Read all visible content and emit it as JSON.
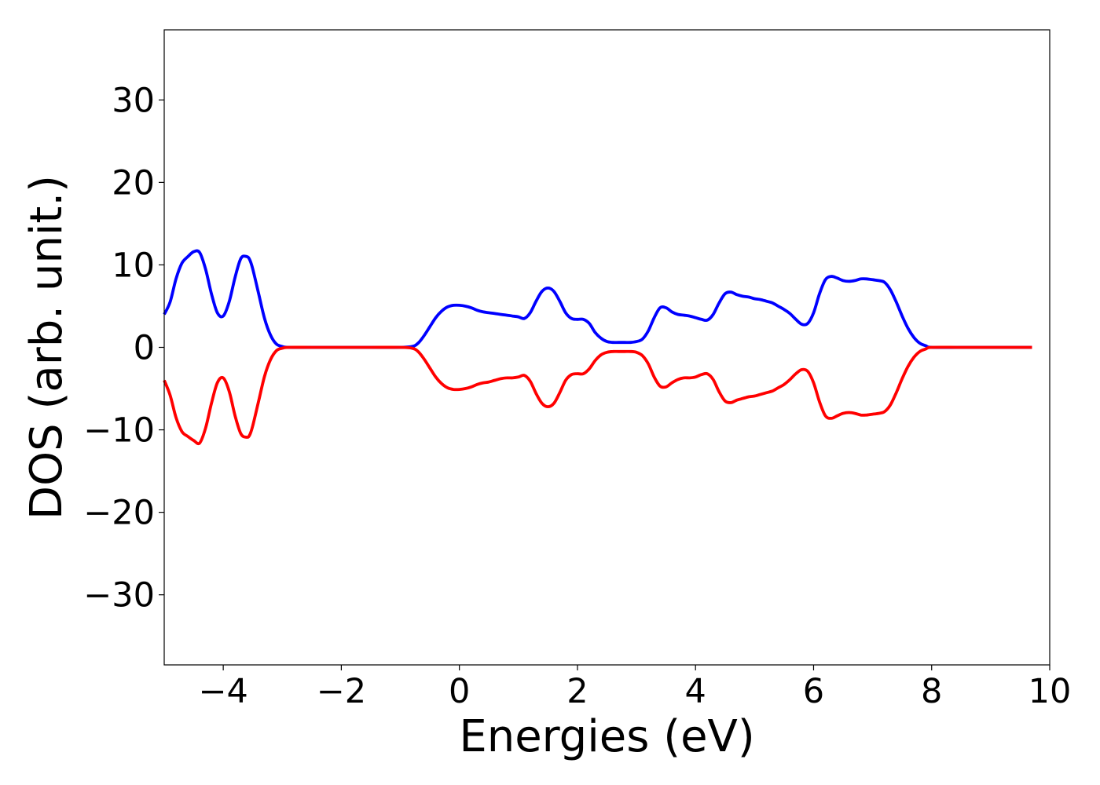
{
  "chart_data": {
    "type": "line",
    "title": "",
    "xlabel": "Energies (eV)",
    "ylabel": "DOS (arb. unit.)",
    "xlim": [
      -5,
      10
    ],
    "ylim": [
      -38.5,
      38.5
    ],
    "xticks": [
      -4,
      -2,
      0,
      2,
      4,
      6,
      8,
      10
    ],
    "yticks": [
      -30,
      -20,
      -10,
      0,
      10,
      20,
      30
    ],
    "xtick_labels": [
      "−4",
      "−2",
      "0",
      "2",
      "4",
      "6",
      "8",
      "10"
    ],
    "ytick_labels": [
      "−30",
      "−20",
      "−10",
      "0",
      "10",
      "20",
      "30"
    ],
    "grid": false,
    "legend": "none",
    "series": [
      {
        "color": "#0000ff",
        "x": [
          -5.0,
          -4.9,
          -4.8,
          -4.7,
          -4.6,
          -4.5,
          -4.4,
          -4.3,
          -4.2,
          -4.1,
          -4.0,
          -3.9,
          -3.8,
          -3.7,
          -3.6,
          -3.55,
          -3.5,
          -3.4,
          -3.3,
          -3.2,
          -3.1,
          -3.0,
          -2.9,
          -2.5,
          -2.0,
          -1.5,
          -1.0,
          -0.8,
          -0.7,
          -0.6,
          -0.5,
          -0.4,
          -0.3,
          -0.2,
          -0.1,
          0.0,
          0.1,
          0.2,
          0.3,
          0.4,
          0.5,
          0.6,
          0.7,
          0.8,
          0.9,
          1.0,
          1.1,
          1.2,
          1.3,
          1.4,
          1.5,
          1.6,
          1.7,
          1.8,
          1.9,
          2.0,
          2.1,
          2.2,
          2.3,
          2.4,
          2.5,
          2.6,
          2.7,
          2.8,
          2.9,
          3.0,
          3.1,
          3.2,
          3.3,
          3.4,
          3.5,
          3.6,
          3.7,
          3.8,
          3.9,
          4.0,
          4.1,
          4.2,
          4.3,
          4.4,
          4.5,
          4.6,
          4.7,
          4.8,
          4.9,
          5.0,
          5.1,
          5.2,
          5.3,
          5.4,
          5.5,
          5.6,
          5.7,
          5.8,
          5.9,
          6.0,
          6.1,
          6.2,
          6.3,
          6.4,
          6.5,
          6.6,
          6.7,
          6.8,
          6.9,
          7.0,
          7.1,
          7.2,
          7.3,
          7.4,
          7.5,
          7.6,
          7.7,
          7.8,
          7.9,
          8.0,
          8.5,
          9.0,
          9.7
        ],
        "y": [
          4.0,
          5.5,
          8.3,
          10.2,
          11.0,
          11.6,
          11.5,
          9.5,
          6.5,
          4.2,
          3.8,
          5.5,
          8.5,
          10.8,
          11.0,
          10.6,
          9.5,
          6.5,
          3.5,
          1.5,
          0.4,
          0.1,
          0.0,
          0.0,
          0.0,
          0.0,
          0.0,
          0.1,
          0.5,
          1.4,
          2.5,
          3.6,
          4.4,
          4.9,
          5.1,
          5.1,
          5.0,
          4.8,
          4.5,
          4.3,
          4.2,
          4.1,
          4.0,
          3.9,
          3.8,
          3.7,
          3.5,
          4.2,
          5.6,
          6.8,
          7.2,
          6.8,
          5.6,
          4.2,
          3.5,
          3.4,
          3.4,
          2.9,
          1.8,
          1.1,
          0.7,
          0.6,
          0.6,
          0.6,
          0.6,
          0.7,
          1.0,
          2.0,
          3.6,
          4.8,
          4.8,
          4.3,
          4.0,
          3.9,
          3.8,
          3.6,
          3.4,
          3.3,
          4.0,
          5.4,
          6.5,
          6.7,
          6.4,
          6.2,
          6.1,
          5.9,
          5.8,
          5.6,
          5.4,
          5.0,
          4.6,
          4.1,
          3.4,
          2.8,
          2.9,
          4.2,
          6.5,
          8.2,
          8.6,
          8.4,
          8.1,
          8.0,
          8.1,
          8.3,
          8.3,
          8.2,
          8.1,
          7.9,
          7.0,
          5.5,
          3.8,
          2.3,
          1.2,
          0.5,
          0.2,
          0.0,
          0.0,
          0.0,
          0.0
        ]
      },
      {
        "color": "#ff0000",
        "x": [
          -5.0,
          -4.9,
          -4.8,
          -4.7,
          -4.6,
          -4.5,
          -4.4,
          -4.3,
          -4.2,
          -4.1,
          -4.0,
          -3.9,
          -3.8,
          -3.7,
          -3.6,
          -3.55,
          -3.5,
          -3.4,
          -3.3,
          -3.2,
          -3.1,
          -3.0,
          -2.9,
          -2.5,
          -2.0,
          -1.5,
          -1.0,
          -0.8,
          -0.7,
          -0.6,
          -0.5,
          -0.4,
          -0.3,
          -0.2,
          -0.1,
          0.0,
          0.1,
          0.2,
          0.3,
          0.4,
          0.5,
          0.6,
          0.7,
          0.8,
          0.9,
          1.0,
          1.1,
          1.2,
          1.3,
          1.4,
          1.5,
          1.6,
          1.7,
          1.8,
          1.9,
          2.0,
          2.1,
          2.2,
          2.3,
          2.4,
          2.5,
          2.6,
          2.7,
          2.8,
          2.9,
          3.0,
          3.1,
          3.2,
          3.3,
          3.4,
          3.5,
          3.6,
          3.7,
          3.8,
          3.9,
          4.0,
          4.1,
          4.2,
          4.3,
          4.4,
          4.5,
          4.6,
          4.7,
          4.8,
          4.9,
          5.0,
          5.1,
          5.2,
          5.3,
          5.4,
          5.5,
          5.6,
          5.7,
          5.8,
          5.9,
          6.0,
          6.1,
          6.2,
          6.3,
          6.4,
          6.5,
          6.6,
          6.7,
          6.8,
          6.9,
          7.0,
          7.1,
          7.2,
          7.3,
          7.4,
          7.5,
          7.6,
          7.7,
          7.8,
          7.9,
          8.0,
          8.5,
          9.0,
          9.7
        ],
        "y": [
          -4.0,
          -5.8,
          -8.5,
          -10.2,
          -10.8,
          -11.3,
          -11.6,
          -9.8,
          -6.8,
          -4.3,
          -3.7,
          -5.3,
          -8.3,
          -10.5,
          -10.9,
          -10.6,
          -9.5,
          -6.5,
          -3.5,
          -1.5,
          -0.4,
          -0.1,
          0.0,
          0.0,
          0.0,
          0.0,
          0.0,
          -0.1,
          -0.5,
          -1.4,
          -2.5,
          -3.6,
          -4.4,
          -4.9,
          -5.1,
          -5.1,
          -5.0,
          -4.8,
          -4.5,
          -4.3,
          -4.2,
          -4.0,
          -3.8,
          -3.7,
          -3.7,
          -3.6,
          -3.4,
          -4.1,
          -5.6,
          -6.8,
          -7.2,
          -6.8,
          -5.5,
          -4.0,
          -3.3,
          -3.2,
          -3.2,
          -2.6,
          -1.6,
          -0.9,
          -0.6,
          -0.5,
          -0.5,
          -0.5,
          -0.5,
          -0.6,
          -1.0,
          -2.0,
          -3.6,
          -4.7,
          -4.8,
          -4.3,
          -3.9,
          -3.7,
          -3.7,
          -3.6,
          -3.3,
          -3.2,
          -3.9,
          -5.4,
          -6.5,
          -6.7,
          -6.4,
          -6.2,
          -6.0,
          -5.9,
          -5.7,
          -5.5,
          -5.3,
          -4.9,
          -4.5,
          -3.9,
          -3.2,
          -2.7,
          -2.9,
          -4.3,
          -6.6,
          -8.3,
          -8.6,
          -8.3,
          -8.0,
          -7.9,
          -8.0,
          -8.2,
          -8.2,
          -8.1,
          -8.0,
          -7.8,
          -7.0,
          -5.5,
          -3.8,
          -2.3,
          -1.2,
          -0.5,
          -0.2,
          0.0,
          0.0,
          0.0,
          0.0
        ]
      }
    ]
  }
}
